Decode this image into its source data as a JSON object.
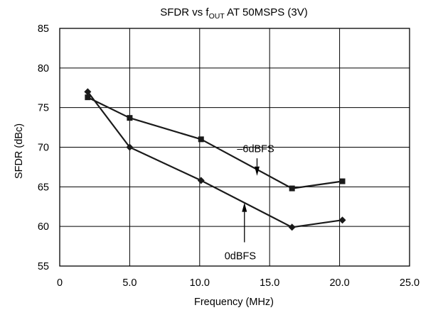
{
  "chart_data": {
    "type": "line",
    "title": {
      "prefix": "SFDR vs f",
      "subscript": "OUT",
      "suffix": " AT 50MSPS (3V)"
    },
    "xlabel": "Frequency (MHz)",
    "ylabel": "SFDR (dBc)",
    "xlim": [
      0,
      25
    ],
    "ylim": [
      55,
      85
    ],
    "xticks": [
      0,
      5,
      10,
      15,
      20,
      25
    ],
    "xtick_labels": [
      "0",
      "5.0",
      "10.0",
      "15.0",
      "20.0",
      "25.0"
    ],
    "yticks": [
      55,
      60,
      65,
      70,
      75,
      80,
      85
    ],
    "ytick_labels": [
      "55",
      "60",
      "65",
      "70",
      "75",
      "80",
      "85"
    ],
    "grid": true,
    "series": [
      {
        "name": "–6dBFS",
        "marker": "square",
        "x": [
          2.0,
          5.0,
          10.1,
          16.6,
          20.2
        ],
        "y": [
          76.3,
          73.7,
          71.0,
          64.8,
          65.7
        ]
      },
      {
        "name": "0dBFS",
        "marker": "diamond",
        "x": [
          2.0,
          5.0,
          10.1,
          16.6,
          20.2
        ],
        "y": [
          77.0,
          70.0,
          65.8,
          59.9,
          60.8
        ]
      }
    ],
    "annotations": [
      {
        "text": "–6dBFS",
        "series": "–6dBFS",
        "arrow_from": [
          14.1,
          68.6
        ],
        "arrow_to": [
          14.1,
          66.4
        ],
        "text_at": [
          14.0,
          69.8
        ]
      },
      {
        "text": "0dBFS",
        "series": "0dBFS",
        "arrow_from": [
          13.2,
          58.0
        ],
        "arrow_to": [
          13.2,
          63.0
        ],
        "text_at": [
          12.9,
          56.3
        ]
      }
    ]
  }
}
